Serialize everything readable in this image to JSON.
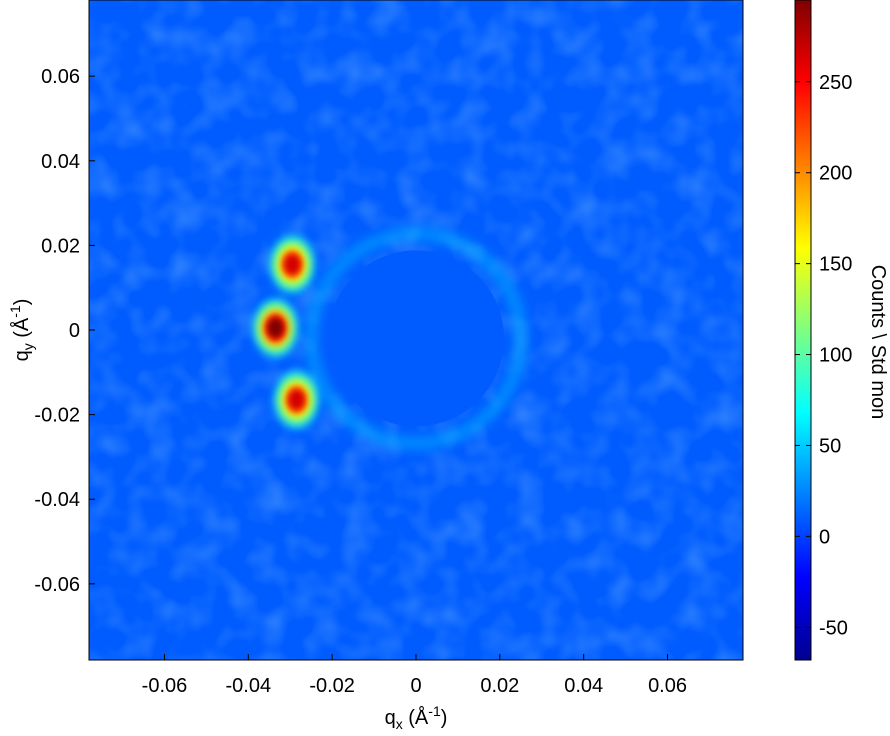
{
  "chart_data": {
    "type": "heatmap",
    "title": "",
    "xlabel": {
      "base": "q",
      "sub": "x",
      "unit_prefix": " (Å",
      "unit_sup": "-1",
      "unit_suffix": ")"
    },
    "ylabel": {
      "base": "q",
      "sub": "y",
      "unit_prefix": " (Å",
      "unit_sup": "-1",
      "unit_suffix": ")"
    },
    "xlim": [
      -0.078,
      0.078
    ],
    "ylim": [
      -0.078,
      0.078
    ],
    "x_ticks": [
      -0.06,
      -0.04,
      -0.02,
      0,
      0.02,
      0.04,
      0.06
    ],
    "x_tick_labels": [
      "-0.06",
      "-0.04",
      "-0.02",
      "0",
      "0.02",
      "0.04",
      "0.06"
    ],
    "y_ticks": [
      0.06,
      0.04,
      0.02,
      0,
      -0.02,
      -0.04,
      -0.06
    ],
    "y_tick_labels": [
      "0.06",
      "0.04",
      "0.02",
      "0",
      "-0.02",
      "-0.04",
      "-0.06"
    ],
    "grid": false,
    "colormap": "jet",
    "colorbar": {
      "label": "Counts \\ Std mon",
      "range": [
        -68,
        295
      ],
      "ticks": [
        250,
        200,
        150,
        100,
        50,
        0,
        -50
      ],
      "tick_labels": [
        "250",
        "200",
        "150",
        "100",
        "50",
        "0",
        "-50"
      ]
    },
    "background_level": 10,
    "beamstop": {
      "center": [
        0.0,
        -0.002
      ],
      "radius": 0.021,
      "value": 10
    },
    "peaks": [
      {
        "qx": -0.0335,
        "qy": 0.0005,
        "value": 295
      },
      {
        "qx": -0.0295,
        "qy": 0.0155,
        "value": 265
      },
      {
        "qx": -0.0285,
        "qy": -0.0165,
        "value": 265
      }
    ],
    "ring": {
      "radius": 0.025,
      "value": 45
    }
  }
}
